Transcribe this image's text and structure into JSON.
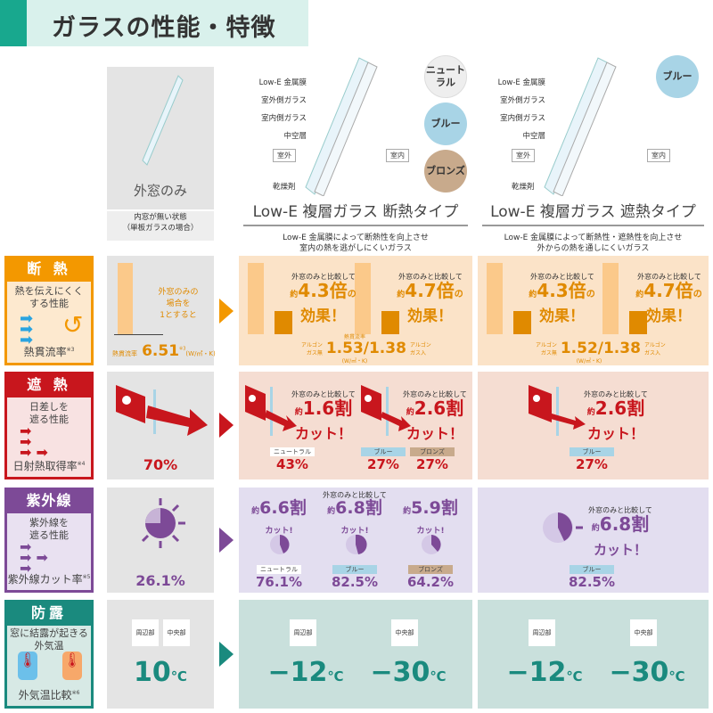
{
  "header": {
    "title": "ガラスの性能・特徴"
  },
  "colors": {
    "insulation": "#f39800",
    "shading": "#c8161d",
    "uv": "#7d4a97",
    "dew": "#1a8a7e",
    "neutral": "#ffffff",
    "blue": "#a8d4e6",
    "bronze": "#c8aa8c"
  },
  "columns": [
    {
      "title": "外窓のみ",
      "note": "内窓が無い状態\n（単板ガラスの場合）"
    },
    {
      "title": "Low-E 複層ガラス 断熱タイプ",
      "desc1": "Low-E 金属膜によって断熱性を向上させ",
      "desc2": "室内の熱を逃がしにくいガラス",
      "parts": [
        "Low-E 金属膜",
        "室外側ガラス",
        "室内側ガラス",
        "中空層",
        "乾燥剤"
      ],
      "outside": "室外",
      "inside": "室内",
      "colors": [
        "ニュートラル",
        "ブルー",
        "ブロンズ"
      ]
    },
    {
      "title": "Low-E 複層ガラス 遮熱タイプ",
      "desc1": "Low-E 金属膜によって断熱性・遮熱性を向上させ",
      "desc2": "外からの熱を通しにくいガラス",
      "parts": [
        "Low-E 金属膜",
        "室外側ガラス",
        "室内側ガラス",
        "中空層",
        "乾燥剤"
      ],
      "outside": "室外",
      "inside": "室内",
      "colors": [
        "ブルー"
      ]
    }
  ],
  "compare": "外窓のみと比較して",
  "approx": "約",
  "rows": {
    "insulation": {
      "title": "断 熱",
      "desc": "熱を伝えにくく\nする性能",
      "footer": "熱貫流率",
      "note": "※3",
      "base": {
        "caption": "外窓のみの\n場合を\n1とすると",
        "label": "熱貫流率",
        "value": "6.51",
        "note": "※3",
        "unit": "(W/㎡・K)"
      },
      "insul": {
        "effects": [
          "4.3倍",
          "4.7倍"
        ],
        "suffix": "の",
        "effect_text": "効果！",
        "label": "熱貫流率",
        "air": "アルゴン\nガス無",
        "argon": "アルゴン\nガス入",
        "value": "1.53/1.38",
        "unit": "(W/㎡・K)"
      },
      "shade": {
        "effects": [
          "4.3倍",
          "4.7倍"
        ],
        "suffix": "の",
        "effect_text": "効果！",
        "air": "アルゴン\nガス無",
        "argon": "アルゴン\nガス入",
        "value": "1.52/1.38",
        "unit": "(W/㎡・K)"
      }
    },
    "shading": {
      "title": "遮 熱",
      "desc": "日差しを\n遮る性能",
      "footer": "日射熱取得率",
      "note": "※4",
      "base": {
        "value": "70%"
      },
      "insul": {
        "effects": [
          "1.6割",
          "2.6割"
        ],
        "cut": "カット！",
        "tags": [
          "ニュートラル",
          "ブルー",
          "ブロンズ"
        ],
        "values": [
          "43%",
          "27%",
          "27%"
        ]
      },
      "shade": {
        "effect": "2.6割",
        "cut": "カット！",
        "tag": "ブルー",
        "value": "27%"
      }
    },
    "uv": {
      "title": "紫外線",
      "desc": "紫外線を\n遮る性能",
      "footer": "紫外線カット率",
      "note": "※5",
      "base": {
        "value": "26.1%"
      },
      "insul": {
        "effects": [
          "6.6割",
          "6.8割",
          "5.9割"
        ],
        "cut": "カット!",
        "tags": [
          "ニュートラル",
          "ブルー",
          "ブロンズ"
        ],
        "values": [
          "76.1%",
          "82.5%",
          "64.2%"
        ]
      },
      "shade": {
        "effect": "6.8割",
        "cut": "カット！",
        "tag": "ブルー",
        "value": "82.5%"
      }
    },
    "dew": {
      "title": "防露",
      "desc": "窓に結露が起きる\n外気温",
      "footer": "外気温比較",
      "note": "※6",
      "edge": "周辺部",
      "center": "中央部",
      "unit": "℃",
      "base": {
        "value": "10"
      },
      "insul": {
        "edge": "−12",
        "center": "−30"
      },
      "shade": {
        "edge": "−12",
        "center": "−30"
      }
    }
  }
}
